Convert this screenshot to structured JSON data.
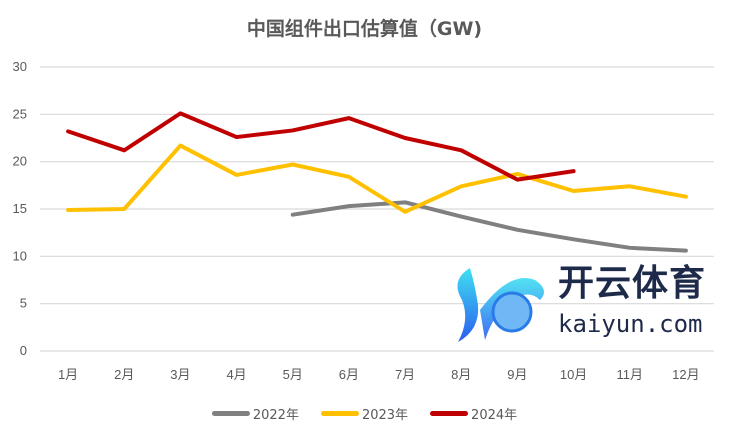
{
  "chart_data": {
    "type": "line",
    "title": "中国组件出口估算值（GW)",
    "categories": [
      "1月",
      "2月",
      "3月",
      "4月",
      "5月",
      "6月",
      "7月",
      "8月",
      "9月",
      "10月",
      "11月",
      "12月"
    ],
    "ylim": [
      0,
      30
    ],
    "yticks": [
      0,
      5,
      10,
      15,
      20,
      25,
      30
    ],
    "grid": true,
    "legend_position": "bottom",
    "series": [
      {
        "name": "2022年",
        "color": "#808080",
        "values": [
          null,
          null,
          null,
          null,
          14.4,
          15.3,
          15.7,
          14.2,
          12.8,
          11.8,
          10.9,
          10.6
        ]
      },
      {
        "name": "2023年",
        "color": "#FFC000",
        "values": [
          14.9,
          15.0,
          21.7,
          18.6,
          19.7,
          18.4,
          14.7,
          17.4,
          18.7,
          16.9,
          17.4,
          16.3
        ]
      },
      {
        "name": "2024年",
        "color": "#C00000",
        "values": [
          23.2,
          21.2,
          25.1,
          22.6,
          23.3,
          24.6,
          22.5,
          21.2,
          18.1,
          19.0,
          null,
          null
        ]
      }
    ]
  },
  "watermark": {
    "cn": "开云体育",
    "en": "kaiyun.com"
  }
}
